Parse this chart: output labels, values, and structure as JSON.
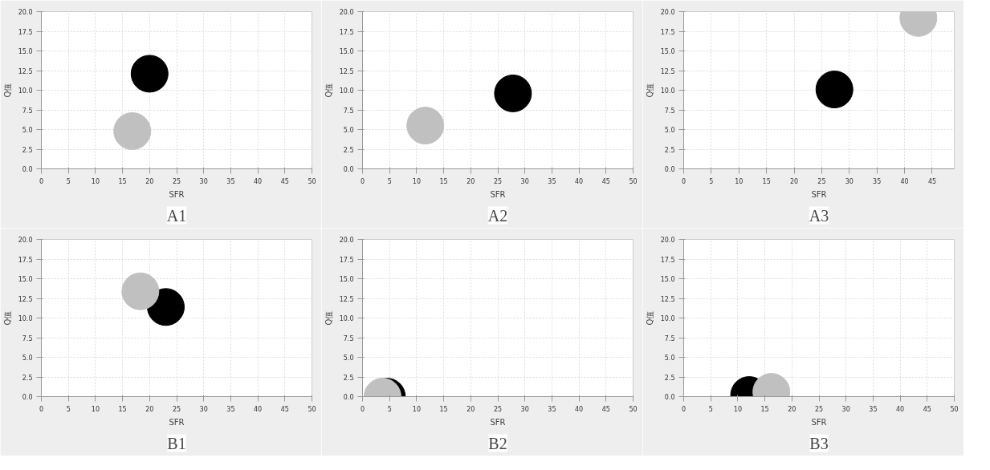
{
  "chart_data": [
    {
      "type": "bubble",
      "xlabel": "SFR",
      "ylabel": "Q值",
      "annotations": [
        "A1"
      ],
      "xlim": [
        0,
        50
      ],
      "ylim": [
        0,
        20
      ],
      "xticks": [
        0,
        5,
        10,
        15,
        20,
        25,
        30,
        35,
        40,
        45,
        50
      ],
      "yticks": [
        {
          "value": 0,
          "label": "0.0"
        },
        {
          "value": 2.5,
          "label": "2.5"
        },
        {
          "value": 5,
          "label": "5.0"
        },
        {
          "value": 7.5,
          "label": "7.5"
        },
        {
          "value": 10,
          "label": "10.0"
        },
        {
          "value": 12.5,
          "label": "12.5"
        },
        {
          "value": 15,
          "label": "15.0"
        },
        {
          "value": 17.5,
          "label": "17.5"
        },
        {
          "value": 20,
          "label": "20.0"
        }
      ],
      "grid": true,
      "series": [
        {
          "color": "#000000",
          "x": [
            20.0
          ],
          "values": [
            12.1
          ],
          "sizes": [
            1
          ]
        },
        {
          "color": "#c0c0c0",
          "x": [
            16.8
          ],
          "values": [
            4.8
          ],
          "sizes": [
            1
          ]
        }
      ]
    },
    {
      "type": "bubble",
      "xlabel": "SFR",
      "ylabel": "Q值",
      "annotations": [
        "A2"
      ],
      "xlim": [
        0,
        50
      ],
      "ylim": [
        0,
        20
      ],
      "xticks": [
        0,
        5,
        10,
        15,
        20,
        25,
        30,
        35,
        40,
        45,
        50
      ],
      "yticks": [
        {
          "value": 0,
          "label": "0.0"
        },
        {
          "value": 2.5,
          "label": "2.5"
        },
        {
          "value": 5,
          "label": "5.0"
        },
        {
          "value": 7.5,
          "label": "7.5"
        },
        {
          "value": 10,
          "label": "10.0"
        },
        {
          "value": 12.5,
          "label": "12.5"
        },
        {
          "value": 15,
          "label": "15.0"
        },
        {
          "value": 17.5,
          "label": "17.5"
        },
        {
          "value": 20,
          "label": "20.0"
        }
      ],
      "grid": true,
      "series": [
        {
          "color": "#000000",
          "x": [
            27.8
          ],
          "values": [
            9.6
          ],
          "sizes": [
            1
          ]
        },
        {
          "color": "#c0c0c0",
          "x": [
            11.6
          ],
          "values": [
            5.5
          ],
          "sizes": [
            1
          ]
        }
      ]
    },
    {
      "type": "bubble",
      "xlabel": "SFR",
      "ylabel": "Q值",
      "annotations": [
        "A3"
      ],
      "xlim": [
        0,
        49
      ],
      "ylim": [
        0,
        20
      ],
      "xticks": [
        0,
        5,
        10,
        15,
        20,
        25,
        30,
        35,
        40,
        45
      ],
      "yticks": [
        {
          "value": 0,
          "label": "0.0"
        },
        {
          "value": 2.5,
          "label": "2.5"
        },
        {
          "value": 5,
          "label": "5.0"
        },
        {
          "value": 7.5,
          "label": "7.5"
        },
        {
          "value": 10,
          "label": "10.0"
        },
        {
          "value": 12.5,
          "label": "12.5"
        },
        {
          "value": 15,
          "label": "15.0"
        },
        {
          "value": 17.5,
          "label": "17.5"
        },
        {
          "value": 20,
          "label": "20.0"
        }
      ],
      "grid": true,
      "series": [
        {
          "color": "#000000",
          "x": [
            27.3
          ],
          "values": [
            10.1
          ],
          "sizes": [
            1
          ]
        },
        {
          "color": "#c0c0c0",
          "x": [
            42.5
          ],
          "values": [
            19.2
          ],
          "sizes": [
            1
          ]
        }
      ]
    },
    {
      "type": "bubble",
      "xlabel": "SFR",
      "ylabel": "Q值",
      "annotations": [
        "B1"
      ],
      "xlim": [
        0,
        50
      ],
      "ylim": [
        0,
        20
      ],
      "xticks": [
        0,
        5,
        10,
        15,
        20,
        25,
        30,
        35,
        40,
        45,
        50
      ],
      "yticks": [
        {
          "value": 0,
          "label": "0.0"
        },
        {
          "value": 2.5,
          "label": "2.5"
        },
        {
          "value": 5,
          "label": "5.0"
        },
        {
          "value": 7.5,
          "label": "7.5"
        },
        {
          "value": 10,
          "label": "10.0"
        },
        {
          "value": 12.5,
          "label": "12.5"
        },
        {
          "value": 15,
          "label": "15.0"
        },
        {
          "value": 17.5,
          "label": "17.5"
        },
        {
          "value": 20,
          "label": "20.0"
        }
      ],
      "grid": true,
      "series": [
        {
          "color": "#000000",
          "x": [
            23.0
          ],
          "values": [
            11.4
          ],
          "sizes": [
            1
          ]
        },
        {
          "color": "#c0c0c0",
          "x": [
            18.3
          ],
          "values": [
            13.4
          ],
          "sizes": [
            1
          ]
        }
      ]
    },
    {
      "type": "bubble",
      "xlabel": "SFR",
      "ylabel": "Q值",
      "annotations": [
        "B2"
      ],
      "xlim": [
        0,
        50
      ],
      "ylim": [
        0,
        20
      ],
      "xticks": [
        0,
        5,
        10,
        15,
        20,
        25,
        30,
        35,
        40,
        45,
        50
      ],
      "yticks": [
        {
          "value": 0,
          "label": "0.0"
        },
        {
          "value": 2.5,
          "label": "2.5"
        },
        {
          "value": 5,
          "label": "5.0"
        },
        {
          "value": 7.5,
          "label": "7.5"
        },
        {
          "value": 10,
          "label": "10.0"
        },
        {
          "value": 12.5,
          "label": "12.5"
        },
        {
          "value": 15,
          "label": "15.0"
        },
        {
          "value": 17.5,
          "label": "17.5"
        },
        {
          "value": 20,
          "label": "20.0"
        }
      ],
      "grid": true,
      "series": [
        {
          "color": "#000000",
          "x": [
            4.5
          ],
          "values": [
            0.0
          ],
          "sizes": [
            1
          ]
        },
        {
          "color": "#c0c0c0",
          "x": [
            3.7
          ],
          "values": [
            0.0
          ],
          "sizes": [
            1
          ]
        }
      ]
    },
    {
      "type": "bubble",
      "xlabel": "SFR",
      "ylabel": "Q值",
      "annotations": [
        "B3"
      ],
      "xlim": [
        0,
        50
      ],
      "ylim": [
        0,
        20
      ],
      "xticks": [
        0,
        5,
        10,
        15,
        20,
        25,
        30,
        35,
        40,
        45,
        50
      ],
      "yticks": [
        {
          "value": 0,
          "label": "0.0"
        },
        {
          "value": 2.5,
          "label": "2.5"
        },
        {
          "value": 5,
          "label": "5.0"
        },
        {
          "value": 7.5,
          "label": "7.5"
        },
        {
          "value": 10,
          "label": "10.0"
        },
        {
          "value": 12.5,
          "label": "12.5"
        },
        {
          "value": 15,
          "label": "15.0"
        },
        {
          "value": 17.5,
          "label": "17.5"
        },
        {
          "value": 20,
          "label": "20.0"
        }
      ],
      "grid": true,
      "series": [
        {
          "color": "#000000",
          "x": [
            12.1
          ],
          "values": [
            0.2
          ],
          "sizes": [
            1
          ]
        },
        {
          "color": "#c0c0c0",
          "x": [
            16.2
          ],
          "values": [
            0.6
          ],
          "sizes": [
            1
          ]
        }
      ]
    }
  ]
}
